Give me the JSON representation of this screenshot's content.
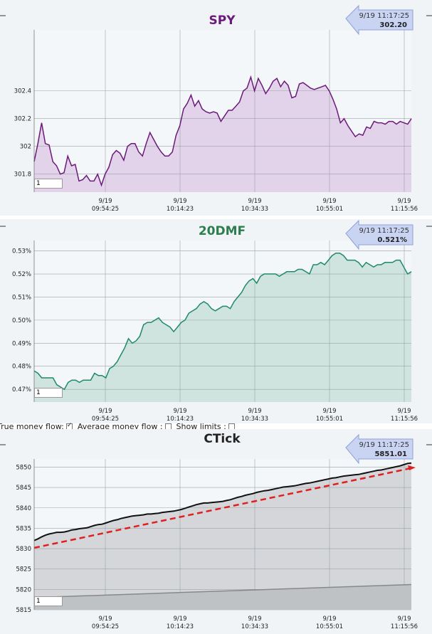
{
  "options": {
    "true_money_flow_label": "True money flow:",
    "true_money_flow_checked": true,
    "average_money_flow_label": "Average money flow :",
    "average_money_flow_checked": false,
    "show_limits_label": "Show limits :",
    "show_limits_checked": false
  },
  "chart_data": [
    {
      "type": "area",
      "title": "SPY",
      "title_color": "#6b1a7a",
      "line_color": "#6b1a7a",
      "fill_color": "#e3d3ea",
      "x_ticks": [
        {
          "date": "9/19",
          "time": "09:54:25"
        },
        {
          "date": "9/19",
          "time": "10:14:23"
        },
        {
          "date": "9/19",
          "time": "10:34:33"
        },
        {
          "date": "9/19",
          "time": "10:55:01"
        },
        {
          "date": "9/19",
          "time": "11:15:56"
        }
      ],
      "y_ticks": [
        "301.8",
        "302",
        "302.2",
        "302.4"
      ],
      "y_tick_values": [
        301.8,
        302.0,
        302.2,
        302.4
      ],
      "ylim": [
        301.67,
        302.84
      ],
      "badge": {
        "time": "9/19 11:17:25",
        "value": "302.20"
      },
      "input_value": "1",
      "values": [
        301.89,
        302.02,
        302.17,
        302.02,
        302.01,
        301.89,
        301.86,
        301.8,
        301.81,
        301.93,
        301.86,
        301.87,
        301.75,
        301.76,
        301.79,
        301.75,
        301.75,
        301.8,
        301.72,
        301.8,
        301.85,
        301.94,
        301.97,
        301.95,
        301.9,
        302.0,
        302.02,
        302.02,
        301.96,
        301.93,
        302.02,
        302.1,
        302.05,
        302.0,
        301.96,
        301.93,
        301.93,
        301.96,
        302.08,
        302.15,
        302.27,
        302.31,
        302.37,
        302.29,
        302.33,
        302.27,
        302.25,
        302.24,
        302.25,
        302.24,
        302.18,
        302.22,
        302.26,
        302.26,
        302.29,
        302.32,
        302.4,
        302.42,
        302.5,
        302.4,
        302.49,
        302.44,
        302.38,
        302.42,
        302.47,
        302.49,
        302.43,
        302.47,
        302.44,
        302.35,
        302.36,
        302.45,
        302.46,
        302.44,
        302.42,
        302.41,
        302.42,
        302.43,
        302.44,
        302.4,
        302.34,
        302.27,
        302.17,
        302.2,
        302.15,
        302.11,
        302.07,
        302.09,
        302.08,
        302.14,
        302.13,
        302.18,
        302.17,
        302.17,
        302.16,
        302.18,
        302.18,
        302.16,
        302.18,
        302.17,
        302.16,
        302.2
      ]
    },
    {
      "type": "area",
      "title": "20DMF",
      "title_color": "#2e7d4f",
      "line_color": "#1e8a66",
      "fill_color": "#cfe4df",
      "x_ticks": [
        {
          "date": "9/19",
          "time": "09:54:25"
        },
        {
          "date": "9/19",
          "time": "10:14:23"
        },
        {
          "date": "9/19",
          "time": "10:34:33"
        },
        {
          "date": "9/19",
          "time": "10:55:01"
        },
        {
          "date": "9/19",
          "time": "11:15:56"
        }
      ],
      "y_ticks": [
        "0.47%",
        "0.48%",
        "0.49%",
        "0.50%",
        "0.51%",
        "0.52%",
        "0.53%"
      ],
      "y_tick_values": [
        0.47,
        0.48,
        0.49,
        0.5,
        0.51,
        0.52,
        0.53
      ],
      "ylim": [
        0.4645,
        0.5345
      ],
      "badge": {
        "time": "9/19 11:17:25",
        "value": "0.521%"
      },
      "input_value": "1",
      "values": [
        0.478,
        0.477,
        0.475,
        0.475,
        0.475,
        0.475,
        0.472,
        0.471,
        0.47,
        0.473,
        0.474,
        0.474,
        0.473,
        0.474,
        0.474,
        0.474,
        0.477,
        0.476,
        0.476,
        0.475,
        0.479,
        0.48,
        0.482,
        0.485,
        0.488,
        0.492,
        0.49,
        0.491,
        0.493,
        0.498,
        0.499,
        0.499,
        0.5,
        0.501,
        0.499,
        0.498,
        0.497,
        0.495,
        0.497,
        0.499,
        0.5,
        0.503,
        0.504,
        0.505,
        0.507,
        0.508,
        0.507,
        0.505,
        0.504,
        0.505,
        0.506,
        0.506,
        0.505,
        0.508,
        0.51,
        0.512,
        0.515,
        0.517,
        0.518,
        0.516,
        0.519,
        0.52,
        0.52,
        0.52,
        0.52,
        0.519,
        0.52,
        0.521,
        0.521,
        0.521,
        0.522,
        0.522,
        0.521,
        0.52,
        0.524,
        0.524,
        0.525,
        0.524,
        0.526,
        0.528,
        0.529,
        0.529,
        0.528,
        0.526,
        0.526,
        0.526,
        0.525,
        0.523,
        0.525,
        0.524,
        0.523,
        0.524,
        0.524,
        0.525,
        0.525,
        0.525,
        0.526,
        0.526,
        0.523,
        0.52,
        0.521
      ]
    },
    {
      "type": "area",
      "title": "CTick",
      "title_color": "#222222",
      "line_color": "#111111",
      "fill_color": "#d4d6d9",
      "x_ticks": [
        {
          "date": "9/19",
          "time": "09:54:25"
        },
        {
          "date": "9/19",
          "time": "10:14:23"
        },
        {
          "date": "9/19",
          "time": "10:34:33"
        },
        {
          "date": "9/19",
          "time": "10:55:01"
        },
        {
          "date": "9/19",
          "time": "11:15:56"
        }
      ],
      "y_ticks": [
        "5815",
        "5820",
        "5825",
        "5830",
        "5835",
        "5840",
        "5845",
        "5850"
      ],
      "y_tick_values": [
        5815,
        5820,
        5825,
        5830,
        5835,
        5840,
        5845,
        5850
      ],
      "ylim": [
        5815,
        5852
      ],
      "badge": {
        "time": "9/19 11:17:25",
        "value": "5851.01"
      },
      "input_value": "1",
      "values": [
        5832.0,
        5832.4,
        5832.9,
        5833.3,
        5833.6,
        5833.8,
        5834.0,
        5834.0,
        5834.1,
        5834.3,
        5834.6,
        5834.7,
        5834.9,
        5835.0,
        5835.1,
        5835.4,
        5835.7,
        5835.9,
        5836.0,
        5836.3,
        5836.6,
        5836.9,
        5837.1,
        5837.4,
        5837.6,
        5837.8,
        5838.0,
        5838.1,
        5838.2,
        5838.3,
        5838.5,
        5838.5,
        5838.6,
        5838.7,
        5838.9,
        5839.0,
        5839.1,
        5839.2,
        5839.4,
        5839.6,
        5839.9,
        5840.2,
        5840.5,
        5840.8,
        5841.0,
        5841.2,
        5841.2,
        5841.3,
        5841.4,
        5841.5,
        5841.6,
        5841.8,
        5842.0,
        5842.3,
        5842.6,
        5842.8,
        5843.1,
        5843.3,
        5843.5,
        5843.8,
        5844.0,
        5844.2,
        5844.3,
        5844.5,
        5844.7,
        5844.9,
        5845.1,
        5845.2,
        5845.3,
        5845.4,
        5845.6,
        5845.8,
        5846.0,
        5846.1,
        5846.3,
        5846.5,
        5846.7,
        5846.9,
        5847.1,
        5847.3,
        5847.4,
        5847.6,
        5847.8,
        5847.9,
        5848.0,
        5848.1,
        5848.2,
        5848.4,
        5848.6,
        5848.8,
        5849.0,
        5849.2,
        5849.3,
        5849.5,
        5849.7,
        5849.9,
        5850.1,
        5850.3,
        5850.6,
        5850.9,
        5851.0
      ],
      "baseline_series": {
        "start": 5818.0,
        "end": 5821.2,
        "color": "#888888"
      },
      "trend_arrow": {
        "start": 5830.2,
        "end": 5849.9,
        "color": "#e02020"
      }
    }
  ]
}
